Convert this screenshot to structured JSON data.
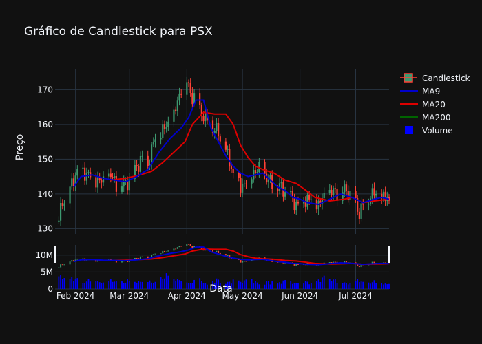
{
  "chart_data": {
    "type": "candlestick",
    "title": "Gráfico de Candlestick para PSX",
    "xlabel": "Data",
    "ylabel": "Preço",
    "price_ylim": [
      128.5,
      176
    ],
    "volume_ylim": [
      0,
      13000000
    ],
    "price_ticks": [
      130,
      140,
      150,
      160,
      170
    ],
    "volume_ticks": [
      {
        "value": 0,
        "label": "0"
      },
      {
        "value": 5000000,
        "label": "5M"
      },
      {
        "value": 10000000,
        "label": "10M"
      }
    ],
    "x_ticks": [
      {
        "day": 3,
        "label": "Feb 2024"
      },
      {
        "day": 32,
        "label": "Mar 2024"
      },
      {
        "day": 63,
        "label": "Apr 2024"
      },
      {
        "day": 93,
        "label": "May 2024"
      },
      {
        "day": 124,
        "label": "Jun 2024"
      },
      {
        "day": 154,
        "label": "Jul 2024"
      }
    ],
    "legend_position": "top-right",
    "legend": [
      {
        "name": "Candlestick",
        "kind": "candle"
      },
      {
        "name": "MA9",
        "kind": "line",
        "color": "#0000cc"
      },
      {
        "name": "MA20",
        "kind": "line",
        "color": "#dd0000"
      },
      {
        "name": "MA200",
        "kind": "line",
        "color": "#006400"
      },
      {
        "name": "Volume",
        "kind": "square",
        "color": "#0000ff"
      }
    ],
    "colors": {
      "up": "#3d9970",
      "down": "#ff4136",
      "ma9": "#0000cc",
      "ma20": "#dd0000",
      "volume": "#0000ff",
      "grid": "#283442"
    },
    "series_anchors": {
      "price": [
        [
          -6,
          132
        ],
        [
          -4,
          138
        ],
        [
          0,
          141
        ],
        [
          3,
          146
        ],
        [
          6,
          147
        ],
        [
          12,
          145
        ],
        [
          18,
          143
        ],
        [
          22,
          145
        ],
        [
          26,
          142
        ],
        [
          30,
          143
        ],
        [
          34,
          146
        ],
        [
          38,
          150
        ],
        [
          42,
          149
        ],
        [
          46,
          156
        ],
        [
          50,
          158
        ],
        [
          53,
          160
        ],
        [
          56,
          162
        ],
        [
          60,
          171
        ],
        [
          63,
          173
        ],
        [
          66,
          168
        ],
        [
          70,
          165
        ],
        [
          73,
          161
        ],
        [
          76,
          160
        ],
        [
          80,
          157
        ],
        [
          84,
          152
        ],
        [
          88,
          146
        ],
        [
          92,
          142
        ],
        [
          96,
          145
        ],
        [
          100,
          147
        ],
        [
          104,
          146
        ],
        [
          108,
          143
        ],
        [
          112,
          142
        ],
        [
          116,
          141
        ],
        [
          120,
          138
        ],
        [
          124,
          137
        ],
        [
          128,
          139
        ],
        [
          134,
          137
        ],
        [
          140,
          140
        ],
        [
          146,
          141
        ],
        [
          150,
          141
        ],
        [
          156,
          135
        ],
        [
          162,
          140
        ],
        [
          168,
          139
        ],
        [
          172,
          138
        ]
      ],
      "ma9": [
        [
          2,
          142
        ],
        [
          6,
          145
        ],
        [
          12,
          145.5
        ],
        [
          18,
          144.5
        ],
        [
          24,
          144
        ],
        [
          30,
          143.5
        ],
        [
          36,
          145
        ],
        [
          42,
          147
        ],
        [
          48,
          152
        ],
        [
          54,
          156
        ],
        [
          60,
          159
        ],
        [
          64,
          162
        ],
        [
          68,
          167
        ],
        [
          72,
          167
        ],
        [
          76,
          159
        ],
        [
          80,
          155
        ],
        [
          84,
          151
        ],
        [
          88,
          148
        ],
        [
          92,
          146
        ],
        [
          96,
          145
        ],
        [
          100,
          145.5
        ],
        [
          104,
          146
        ],
        [
          108,
          144
        ],
        [
          112,
          142
        ],
        [
          116,
          141
        ],
        [
          120,
          139
        ],
        [
          124,
          138.5
        ],
        [
          128,
          137.5
        ],
        [
          134,
          137
        ],
        [
          140,
          138.5
        ],
        [
          146,
          140
        ],
        [
          152,
          139
        ],
        [
          158,
          137.5
        ],
        [
          164,
          138.5
        ],
        [
          168,
          139
        ],
        [
          172,
          138.5
        ]
      ],
      "ma20": [
        [
          22,
          144
        ],
        [
          30,
          144.5
        ],
        [
          38,
          145.5
        ],
        [
          44,
          146.5
        ],
        [
          50,
          149
        ],
        [
          56,
          152
        ],
        [
          62,
          155
        ],
        [
          66,
          160
        ],
        [
          72,
          163.5
        ],
        [
          78,
          163
        ],
        [
          84,
          163
        ],
        [
          88,
          160
        ],
        [
          92,
          154
        ],
        [
          96,
          150.5
        ],
        [
          100,
          148
        ],
        [
          104,
          147
        ],
        [
          110,
          146
        ],
        [
          116,
          144
        ],
        [
          122,
          143
        ],
        [
          126,
          141.5
        ],
        [
          132,
          139
        ],
        [
          140,
          138
        ],
        [
          148,
          138.5
        ],
        [
          152,
          139
        ],
        [
          158,
          137.5
        ],
        [
          164,
          138
        ],
        [
          172,
          138.5
        ]
      ],
      "volume_bars": [
        [
          -6,
          4000000
        ],
        [
          -2,
          5500000
        ],
        [
          0,
          3500000
        ],
        [
          8,
          2800000
        ],
        [
          14,
          3200000
        ],
        [
          20,
          2500000
        ],
        [
          26,
          3000000
        ],
        [
          30,
          2200000
        ],
        [
          34,
          3600000
        ],
        [
          40,
          2400000
        ],
        [
          46,
          3000000
        ],
        [
          50,
          3400000
        ],
        [
          54,
          6000000
        ],
        [
          58,
          2800000
        ],
        [
          62,
          3200000
        ],
        [
          66,
          2600000
        ],
        [
          70,
          3000000
        ],
        [
          74,
          2200000
        ],
        [
          80,
          3000000
        ],
        [
          86,
          2400000
        ],
        [
          90,
          2800000
        ],
        [
          94,
          3400000
        ],
        [
          100,
          2600000
        ],
        [
          106,
          2200000
        ],
        [
          112,
          2800000
        ],
        [
          118,
          2400000
        ],
        [
          124,
          3000000
        ],
        [
          128,
          2200000
        ],
        [
          134,
          2800000
        ],
        [
          140,
          4800000
        ],
        [
          144,
          2600000
        ],
        [
          150,
          2400000
        ],
        [
          156,
          2800000
        ],
        [
          162,
          2200000
        ],
        [
          168,
          2600000
        ],
        [
          172,
          1800000
        ]
      ]
    },
    "day_range": [
      -8,
      172
    ]
  }
}
